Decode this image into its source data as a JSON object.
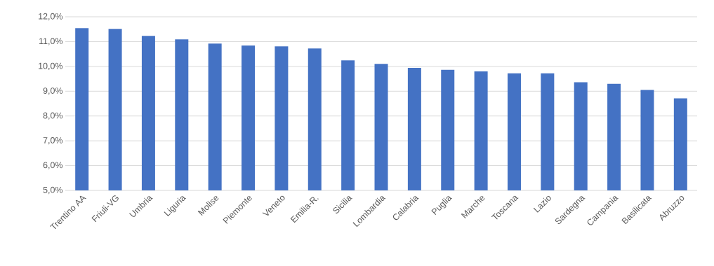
{
  "chart_data": {
    "type": "bar",
    "categories": [
      "Trentino AA",
      "Friuli-VG",
      "Umbria",
      "Liguria",
      "Molise",
      "Piemonte",
      "Veneto",
      "Emilia-R.",
      "Sicilia",
      "Lombardia",
      "Calabria",
      "Puglia",
      "Marche",
      "Toscana",
      "Lazio",
      "Sardegna",
      "Campania",
      "Basilicata",
      "Abruzzo"
    ],
    "values": [
      11.54,
      11.51,
      11.23,
      11.09,
      10.92,
      10.84,
      10.81,
      10.72,
      10.24,
      10.1,
      9.94,
      9.86,
      9.8,
      9.72,
      9.72,
      9.36,
      9.3,
      9.05,
      8.71
    ],
    "color": "#4472c4",
    "ylim": [
      5,
      12
    ],
    "yticks": [
      {
        "value": 5,
        "label": "5,0%"
      },
      {
        "value": 6,
        "label": "6,0%"
      },
      {
        "value": 7,
        "label": "7,0%"
      },
      {
        "value": 8,
        "label": "8,0%"
      },
      {
        "value": 9,
        "label": "9,0%"
      },
      {
        "value": 10,
        "label": "10,0%"
      },
      {
        "value": 11,
        "label": "11,0%"
      },
      {
        "value": 12,
        "label": "12,0%"
      }
    ],
    "grid": "y"
  }
}
